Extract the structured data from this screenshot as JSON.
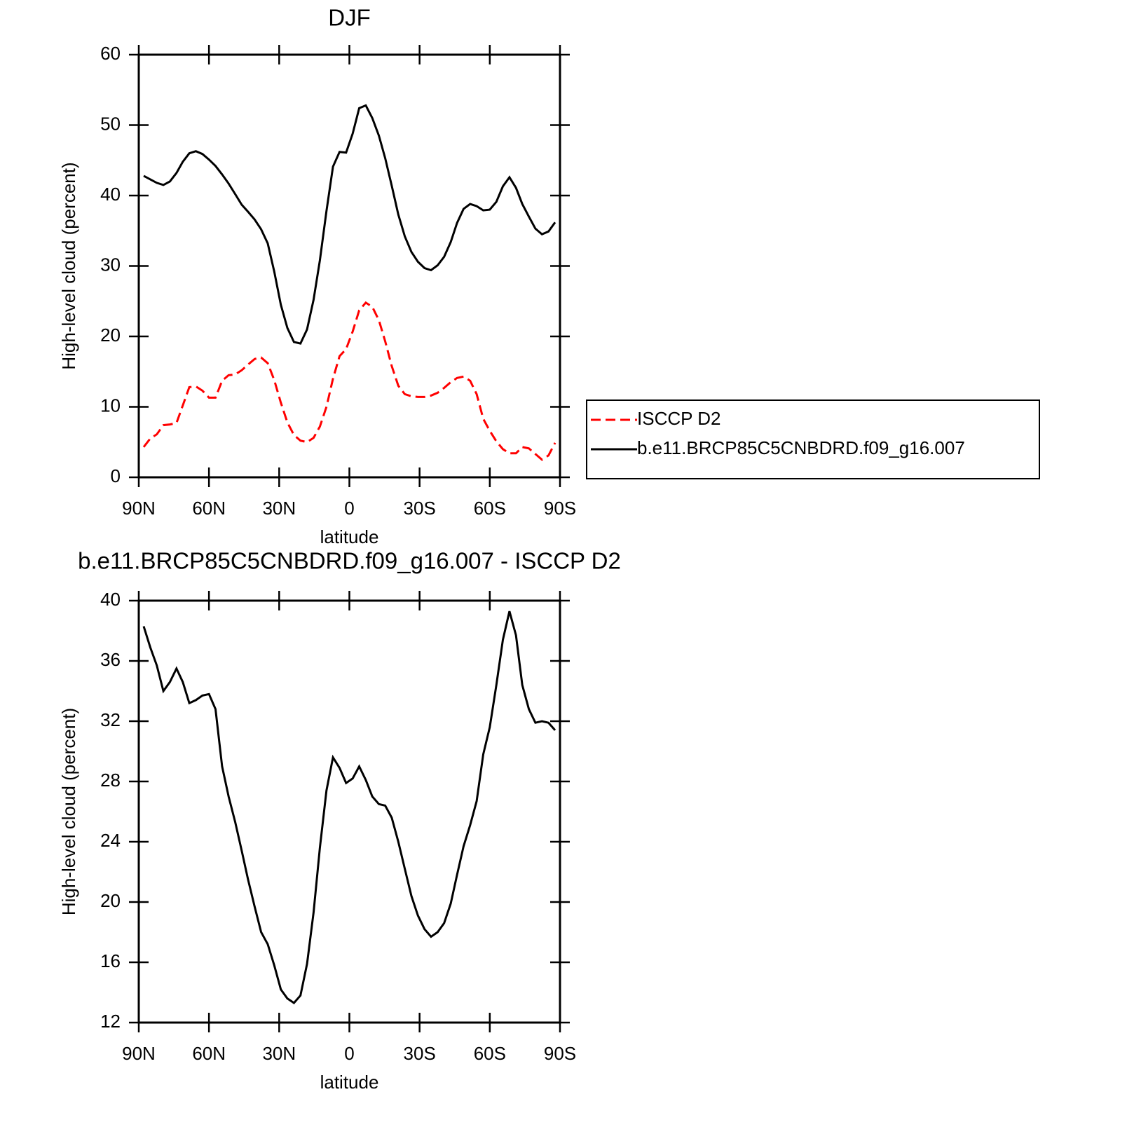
{
  "chart_data": [
    {
      "type": "line",
      "title": "DJF",
      "xlabel": "latitude",
      "ylabel": "High-level cloud (percent)",
      "x": [
        87.9,
        85.1,
        82.3,
        79.5,
        76.7,
        73.9,
        71.2,
        68.4,
        65.6,
        62.8,
        60.0,
        57.2,
        54.4,
        51.6,
        48.8,
        46.0,
        43.3,
        40.5,
        37.7,
        34.9,
        32.1,
        29.3,
        26.5,
        23.7,
        20.9,
        18.1,
        15.3,
        12.6,
        9.8,
        7.0,
        4.2,
        1.4,
        -1.4,
        -4.2,
        -7.0,
        -9.8,
        -12.6,
        -15.3,
        -18.1,
        -20.9,
        -23.7,
        -26.5,
        -29.3,
        -32.1,
        -34.9,
        -37.7,
        -40.5,
        -43.3,
        -46.0,
        -48.8,
        -51.6,
        -54.4,
        -57.2,
        -60.0,
        -62.8,
        -65.6,
        -68.4,
        -71.2,
        -73.9,
        -76.7,
        -79.5,
        -82.3,
        -85.1,
        -87.9
      ],
      "series": [
        {
          "name": "ISCCP D2",
          "color": "#ff0000",
          "dashed": true,
          "values": [
            4.3,
            5.5,
            6.1,
            7.4,
            7.5,
            7.7,
            10.2,
            12.8,
            12.9,
            12.3,
            11.3,
            11.3,
            13.7,
            14.5,
            14.6,
            15.2,
            16.0,
            16.8,
            17.0,
            16.2,
            13.8,
            10.6,
            7.8,
            6.0,
            5.2,
            5.0,
            5.6,
            7.2,
            10.0,
            14.0,
            17.2,
            18.2,
            20.7,
            23.7,
            24.8,
            24.2,
            22.3,
            19.3,
            15.8,
            13.0,
            11.8,
            11.5,
            11.4,
            11.4,
            11.6,
            12.0,
            12.7,
            13.5,
            14.1,
            14.3,
            13.7,
            11.8,
            8.3,
            6.6,
            5.1,
            4.0,
            3.4,
            3.4,
            4.3,
            4.1,
            3.3,
            2.5,
            3.1,
            4.9
          ]
        },
        {
          "name": "b.e11.BRCP85C5CNBDRD.f09_g16.007",
          "color": "#000000",
          "dashed": false,
          "values": [
            42.8,
            42.3,
            41.8,
            41.5,
            42.0,
            43.2,
            44.8,
            46.0,
            46.3,
            45.9,
            45.1,
            44.2,
            43.0,
            41.7,
            40.2,
            38.7,
            37.7,
            36.6,
            35.2,
            33.2,
            29.2,
            24.5,
            21.2,
            19.2,
            19.0,
            21.0,
            25.2,
            30.8,
            37.8,
            44.1,
            46.2,
            46.1,
            48.8,
            52.4,
            52.8,
            51.0,
            48.5,
            45.3,
            41.4,
            37.3,
            34.2,
            32.0,
            30.6,
            29.7,
            29.4,
            30.1,
            31.3,
            33.4,
            36.1,
            38.1,
            38.8,
            38.5,
            37.9,
            38.0,
            39.1,
            41.3,
            42.6,
            41.1,
            38.8,
            37.0,
            35.3,
            34.5,
            34.9,
            36.2
          ]
        }
      ],
      "xlim": [
        90,
        -90
      ],
      "xticks": [
        {
          "value": 90,
          "label": "90N"
        },
        {
          "value": 60,
          "label": "60N"
        },
        {
          "value": 30,
          "label": "30N"
        },
        0,
        {
          "value": -30,
          "label": "30S"
        },
        {
          "value": -60,
          "label": "60S"
        },
        {
          "value": -90,
          "label": "90S"
        }
      ],
      "ylim": [
        0,
        60
      ],
      "yticks": [
        0,
        10,
        20,
        30,
        40,
        50,
        60
      ],
      "legend": "right"
    },
    {
      "type": "line",
      "title": "b.e11.BRCP85C5CNBDRD.f09_g16.007 - ISCCP D2",
      "xlabel": "latitude",
      "ylabel": "High-level cloud (percent)",
      "x": [
        87.9,
        85.1,
        82.3,
        79.5,
        76.7,
        73.9,
        71.2,
        68.4,
        65.6,
        62.8,
        60.0,
        57.2,
        54.4,
        51.6,
        48.8,
        46.0,
        43.3,
        40.5,
        37.7,
        34.9,
        32.1,
        29.3,
        26.5,
        23.7,
        20.9,
        18.1,
        15.3,
        12.6,
        9.8,
        7.0,
        4.2,
        1.4,
        -1.4,
        -4.2,
        -7.0,
        -9.8,
        -12.6,
        -15.3,
        -18.1,
        -20.9,
        -23.7,
        -26.5,
        -29.3,
        -32.1,
        -34.9,
        -37.7,
        -40.5,
        -43.3,
        -46.0,
        -48.8,
        -51.6,
        -54.4,
        -57.2,
        -60.0,
        -62.8,
        -65.6,
        -68.4,
        -71.2,
        -73.9,
        -76.7,
        -79.5,
        -82.3,
        -85.1,
        -87.9
      ],
      "values": [
        38.3,
        36.9,
        35.7,
        34.0,
        34.6,
        35.5,
        34.6,
        33.2,
        33.4,
        33.7,
        33.8,
        32.8,
        29.0,
        27.0,
        25.3,
        23.4,
        21.5,
        19.7,
        18.0,
        17.2,
        15.8,
        14.2,
        13.6,
        13.3,
        13.8,
        15.9,
        19.3,
        23.6,
        27.4,
        29.6,
        28.9,
        27.9,
        28.2,
        29.0,
        28.1,
        27.0,
        26.5,
        26.4,
        25.6,
        24.0,
        22.2,
        20.4,
        19.1,
        18.2,
        17.7,
        18.0,
        18.6,
        19.9,
        21.8,
        23.7,
        25.1,
        26.7,
        29.8,
        31.6,
        34.4,
        37.4,
        39.3,
        37.7,
        34.4,
        32.8,
        31.9,
        32.0,
        31.9,
        31.4
      ],
      "color": "#000000",
      "xlim": [
        90,
        -90
      ],
      "xticks": [
        {
          "value": 90,
          "label": "90N"
        },
        {
          "value": 60,
          "label": "60N"
        },
        {
          "value": 30,
          "label": "30N"
        },
        0,
        {
          "value": -30,
          "label": "30S"
        },
        {
          "value": -60,
          "label": "60S"
        },
        {
          "value": -90,
          "label": "90S"
        }
      ],
      "ylim": [
        12,
        40
      ],
      "yticks": [
        12,
        16,
        20,
        24,
        28,
        32,
        36,
        40
      ]
    }
  ]
}
